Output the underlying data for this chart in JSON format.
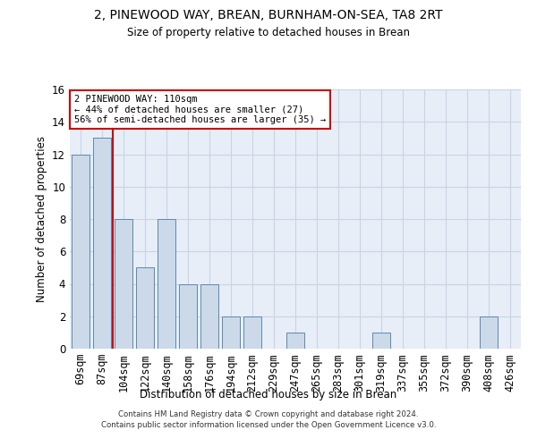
{
  "title": "2, PINEWOOD WAY, BREAN, BURNHAM-ON-SEA, TA8 2RT",
  "subtitle": "Size of property relative to detached houses in Brean",
  "xlabel": "Distribution of detached houses by size in Brean",
  "ylabel": "Number of detached properties",
  "bar_labels": [
    "69sqm",
    "87sqm",
    "104sqm",
    "122sqm",
    "140sqm",
    "158sqm",
    "176sqm",
    "194sqm",
    "212sqm",
    "229sqm",
    "247sqm",
    "265sqm",
    "283sqm",
    "301sqm",
    "319sqm",
    "337sqm",
    "355sqm",
    "372sqm",
    "390sqm",
    "408sqm",
    "426sqm"
  ],
  "bar_values": [
    12,
    13,
    8,
    5,
    8,
    4,
    4,
    2,
    2,
    0,
    1,
    0,
    0,
    0,
    1,
    0,
    0,
    0,
    0,
    2,
    0
  ],
  "bar_color": "#ccd9e8",
  "bar_edge_color": "#5a8ab0",
  "vline_position": 1.5,
  "vline_color": "#cc0000",
  "annotation_line1": "2 PINEWOOD WAY: 110sqm",
  "annotation_line2": "← 44% of detached houses are smaller (27)",
  "annotation_line3": "56% of semi-detached houses are larger (35) →",
  "annotation_box_color": "#cc0000",
  "ylim": [
    0,
    16
  ],
  "yticks": [
    0,
    2,
    4,
    6,
    8,
    10,
    12,
    14,
    16
  ],
  "grid_color": "#c8d4e4",
  "background_color": "#e8eef8",
  "footer_line1": "Contains HM Land Registry data © Crown copyright and database right 2024.",
  "footer_line2": "Contains public sector information licensed under the Open Government Licence v3.0."
}
